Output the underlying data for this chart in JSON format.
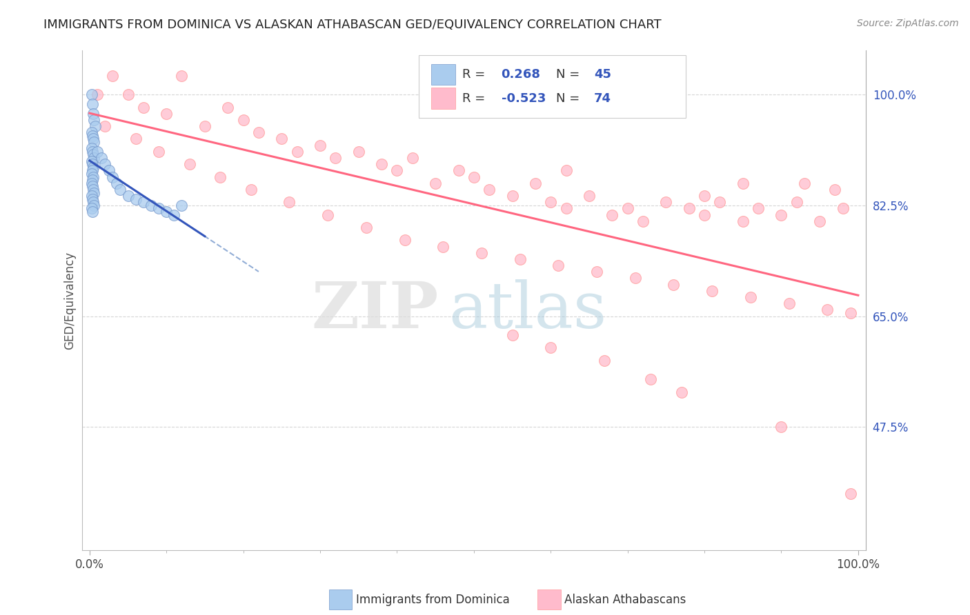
{
  "title": "IMMIGRANTS FROM DOMINICA VS ALASKAN ATHABASCAN GED/EQUIVALENCY CORRELATION CHART",
  "source_text": "Source: ZipAtlas.com",
  "ylabel": "GED/Equivalency",
  "xlim": [
    -1,
    101
  ],
  "ylim": [
    28,
    107
  ],
  "yticks": [
    47.5,
    65.0,
    82.5,
    100.0
  ],
  "xticks": [
    0.0,
    100.0
  ],
  "xtick_minor": [
    10,
    20,
    30,
    40,
    50,
    60,
    70,
    80,
    90
  ],
  "blue_label": "Immigrants from Dominica",
  "pink_label": "Alaskan Athabascans",
  "blue_R": "0.268",
  "blue_N": "45",
  "pink_R": "-0.523",
  "pink_N": "74",
  "blue_face": "#AACCEE",
  "blue_edge": "#7799CC",
  "pink_face": "#FFBBCC",
  "pink_edge": "#FF9999",
  "blue_line_color": "#3355BB",
  "blue_dash_color": "#7799CC",
  "pink_line_color": "#FF6680",
  "grid_color": "#CCCCCC",
  "bg_color": "#FFFFFF",
  "title_color": "#222222",
  "ytick_color": "#3355BB",
  "xtick_color": "#444444",
  "source_color": "#888888",
  "legend_border": "#CCCCCC",
  "watermark_zip_color": "#DDDDDD",
  "watermark_atlas_color": "#AACCDD",
  "title_fontsize": 13,
  "tick_fontsize": 12,
  "source_fontsize": 10,
  "ylabel_fontsize": 12,
  "legend_fontsize": 13,
  "scatter_size": 130,
  "scatter_alpha": 0.75,
  "blue_x": [
    0.3,
    0.4,
    0.5,
    0.6,
    0.7,
    0.3,
    0.4,
    0.5,
    0.6,
    0.3,
    0.4,
    0.5,
    0.6,
    0.3,
    0.4,
    0.5,
    0.4,
    0.3,
    0.5,
    0.4,
    0.3,
    0.4,
    0.5,
    0.6,
    0.3,
    0.4,
    0.5,
    0.6,
    0.3,
    0.4,
    1.0,
    1.5,
    2.0,
    2.5,
    3.0,
    3.5,
    4.0,
    5.0,
    6.0,
    7.0,
    8.0,
    9.0,
    10.0,
    11.0,
    12.0
  ],
  "blue_y": [
    100.0,
    98.5,
    97.0,
    96.0,
    95.0,
    94.0,
    93.5,
    93.0,
    92.5,
    91.5,
    91.0,
    90.5,
    90.0,
    89.5,
    89.0,
    88.5,
    88.0,
    87.5,
    87.0,
    86.5,
    86.0,
    85.5,
    85.0,
    84.5,
    84.0,
    83.5,
    83.0,
    82.5,
    82.0,
    81.5,
    91.0,
    90.0,
    89.0,
    88.0,
    87.0,
    86.0,
    85.0,
    84.0,
    83.5,
    83.0,
    82.5,
    82.0,
    81.5,
    81.0,
    82.5
  ],
  "pink_x": [
    1.0,
    3.0,
    5.0,
    7.0,
    10.0,
    12.0,
    15.0,
    18.0,
    20.0,
    22.0,
    25.0,
    27.0,
    30.0,
    32.0,
    35.0,
    38.0,
    40.0,
    42.0,
    45.0,
    48.0,
    50.0,
    52.0,
    55.0,
    58.0,
    60.0,
    62.0,
    65.0,
    68.0,
    70.0,
    72.0,
    75.0,
    78.0,
    80.0,
    82.0,
    85.0,
    87.0,
    90.0,
    92.0,
    95.0,
    98.0,
    2.0,
    6.0,
    9.0,
    13.0,
    17.0,
    21.0,
    26.0,
    31.0,
    36.0,
    41.0,
    46.0,
    51.0,
    56.0,
    61.0,
    66.0,
    71.0,
    76.0,
    81.0,
    86.0,
    91.0,
    96.0,
    99.0,
    55.0,
    60.0,
    67.0,
    73.0,
    77.0,
    80.0,
    90.0,
    85.0,
    93.0,
    97.0,
    62.0,
    99.0
  ],
  "pink_y": [
    100.0,
    103.0,
    100.0,
    98.0,
    97.0,
    103.0,
    95.0,
    98.0,
    96.0,
    94.0,
    93.0,
    91.0,
    92.0,
    90.0,
    91.0,
    89.0,
    88.0,
    90.0,
    86.0,
    88.0,
    87.0,
    85.0,
    84.0,
    86.0,
    83.0,
    82.0,
    84.0,
    81.0,
    82.0,
    80.0,
    83.0,
    82.0,
    81.0,
    83.0,
    80.0,
    82.0,
    81.0,
    83.0,
    80.0,
    82.0,
    95.0,
    93.0,
    91.0,
    89.0,
    87.0,
    85.0,
    83.0,
    81.0,
    79.0,
    77.0,
    76.0,
    75.0,
    74.0,
    73.0,
    72.0,
    71.0,
    70.0,
    69.0,
    68.0,
    67.0,
    66.0,
    65.5,
    62.0,
    60.0,
    58.0,
    55.0,
    53.0,
    84.0,
    47.5,
    86.0,
    86.0,
    85.0,
    88.0,
    37.0
  ]
}
